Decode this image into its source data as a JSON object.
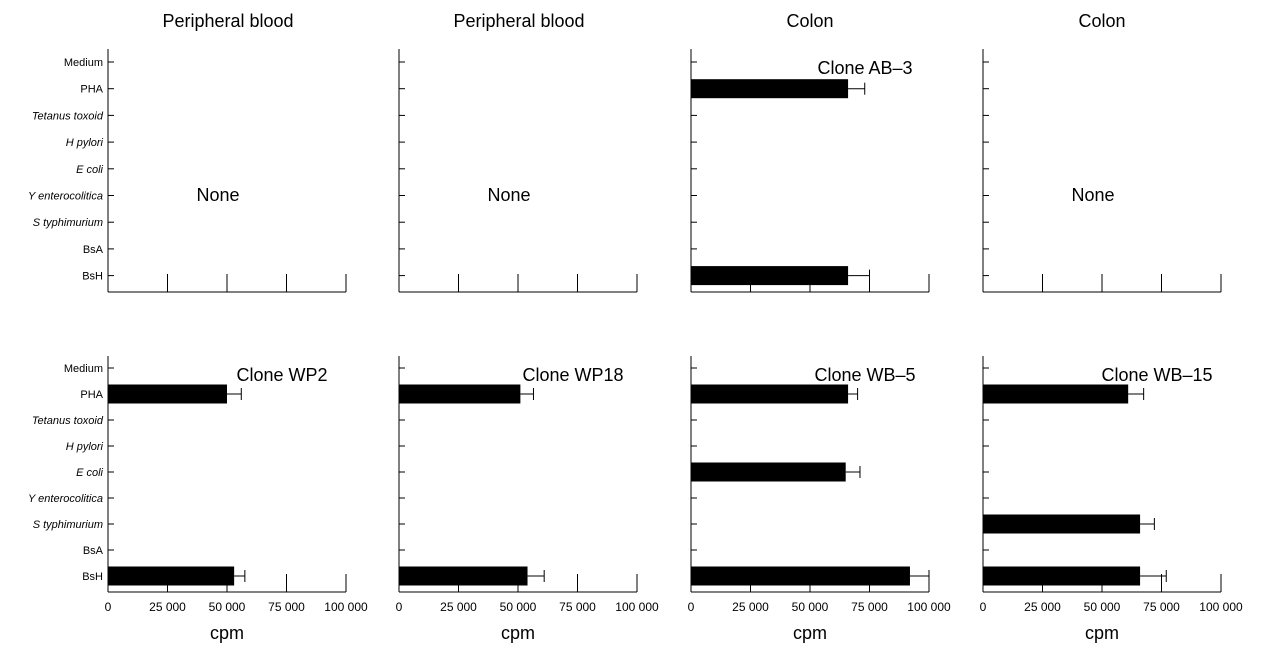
{
  "column_titles": [
    "Peripheral blood",
    "Peripheral blood",
    "Colon",
    "Colon"
  ],
  "chart_data": {
    "type": "bar",
    "orientation": "horizontal",
    "categories": [
      "Medium",
      "PHA",
      "Tetanus toxoid",
      "H pylori",
      "E coli",
      "Y enterocolitica",
      "S typhimurium",
      "BsA",
      "BsH"
    ],
    "italic_categories": [
      "Tetanus toxoid",
      "H pylori",
      "E coli",
      "Y enterocolitica",
      "S typhimurium"
    ],
    "xlim": [
      0,
      100000
    ],
    "xticks": [
      0,
      25000,
      50000,
      75000,
      100000
    ],
    "xtick_labels": [
      "0",
      "25 000",
      "50 000",
      "75 000",
      "100 000"
    ],
    "xlabel": "cpm",
    "bar_color": "#000000",
    "panels": [
      {
        "annotation": "None",
        "bars": []
      },
      {
        "annotation": "None",
        "bars": []
      },
      {
        "annotation": "Clone AB–3",
        "bars": [
          {
            "category": "PHA",
            "value": 66000,
            "error": 7000
          },
          {
            "category": "BsH",
            "value": 66000,
            "error": 9000
          }
        ]
      },
      {
        "annotation": "None",
        "bars": []
      },
      {
        "annotation": "Clone WP2",
        "bars": [
          {
            "category": "PHA",
            "value": 50000,
            "error": 6000
          },
          {
            "category": "BsH",
            "value": 53000,
            "error": 4500
          }
        ]
      },
      {
        "annotation": "Clone WP18",
        "bars": [
          {
            "category": "PHA",
            "value": 51000,
            "error": 5500
          },
          {
            "category": "BsH",
            "value": 54000,
            "error": 7000
          }
        ]
      },
      {
        "annotation": "Clone WB–5",
        "bars": [
          {
            "category": "PHA",
            "value": 66000,
            "error": 4000
          },
          {
            "category": "E coli",
            "value": 65000,
            "error": 6000
          },
          {
            "category": "BsH",
            "value": 92000,
            "error": 8000
          }
        ]
      },
      {
        "annotation": "Clone WB–15",
        "bars": [
          {
            "category": "PHA",
            "value": 61000,
            "error": 6500
          },
          {
            "category": "S typhimurium",
            "value": 66000,
            "error": 6000
          },
          {
            "category": "BsH",
            "value": 66000,
            "error": 11000
          }
        ]
      }
    ]
  }
}
